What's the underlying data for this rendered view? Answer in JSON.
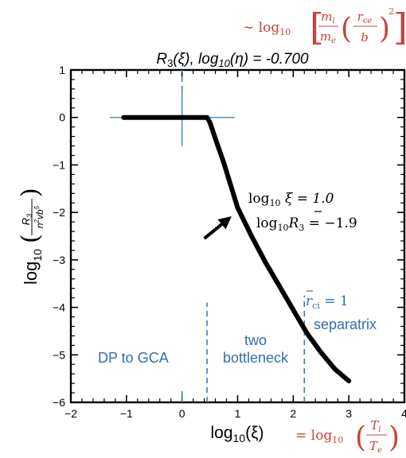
{
  "chart_data": {
    "type": "line",
    "title": "R",
    "title_sub": "3",
    "title_arg": "(ξ),  ",
    "title_log": "log",
    "title_log_sub": "10",
    "title_eta": "(η) = -0.700",
    "xlabel": "log",
    "xlabel_sub": "10",
    "xlabel_arg": "(ξ)",
    "ylabel_log": "log",
    "ylabel_sub": "10",
    "ylabel_num": "R",
    "ylabel_num_sub": "3",
    "ylabel_den": "n",
    "ylabel_den_sup1": "2",
    "ylabel_den_mid": "v",
    "ylabel_den_b": "b",
    "ylabel_den_sup2": "5",
    "xlim": [
      -2,
      4
    ],
    "ylim": [
      -6,
      1
    ],
    "xticks": [
      -2,
      -1,
      0,
      1,
      2,
      3,
      4
    ],
    "xtick_labels": [
      "−2",
      "−1",
      "0",
      "1",
      "2",
      "3",
      "4"
    ],
    "yticks": [
      1,
      0,
      -1,
      -2,
      -3,
      -4,
      -5,
      -6
    ],
    "ytick_labels": [
      "1",
      "0",
      "−1",
      "−2",
      "−3",
      "−4",
      "−5",
      "−6"
    ],
    "grid": false,
    "series": [
      {
        "color": "#000000",
        "x": [
          -1.05,
          0.0,
          0.35,
          0.45,
          0.5,
          0.6,
          0.75,
          1.0,
          1.25,
          1.5,
          1.75,
          2.0,
          2.25,
          2.5,
          2.75,
          3.0
        ],
        "y": [
          0.0,
          0.0,
          0.0,
          0.0,
          -0.1,
          -0.45,
          -0.95,
          -1.9,
          -2.5,
          -3.05,
          -3.55,
          -4.05,
          -4.55,
          -4.95,
          -5.3,
          -5.55
        ]
      }
    ],
    "crosshair": {
      "x": 0,
      "y": 0,
      "x_range": [
        -1.3,
        0.95
      ],
      "y_range": [
        -0.6,
        0.55
      ],
      "color": "#3a7ab4"
    },
    "vlines": [
      {
        "x": 0,
        "y_from": 0.55,
        "y_to": 1,
        "style": "dashed",
        "color": "#3a7ab4"
      },
      {
        "x": 0.45,
        "y_from": -6,
        "y_to": -3.9,
        "style": "dashed",
        "color": "#3a7ab4"
      },
      {
        "x": 2.2,
        "y_from": -6,
        "y_to": -3.75,
        "style": "dashed",
        "color": "#3a7ab4"
      }
    ],
    "marker_ticks": [
      {
        "x": 0,
        "y": -6
      }
    ],
    "arrow": {
      "from": [
        0.4,
        -2.55
      ],
      "to": [
        0.82,
        -2.15
      ]
    },
    "annotations": {
      "point_xi": {
        "prefix": "log",
        "sub": "10",
        "rest": " ξ = 1.0"
      },
      "point_r": {
        "prefix": "log",
        "sub": "10",
        "sym": "R",
        "sym_sub": "3",
        "rest": " = −1.9"
      },
      "r_ci": {
        "sym": "r",
        "sub": "ci",
        "rest": " = 1"
      },
      "region_dp_gca": "DP to GCA",
      "region_two_line1": "two",
      "region_two_line2": "bottleneck",
      "region_separatrix": "separatrix",
      "top_formula": {
        "tilde": "∼ log",
        "sub": "10",
        "mi": "m",
        "mi_sub": "i",
        "me": "m",
        "me_sub": "e",
        "rce": "r",
        "rce_sub": "ce",
        "b": "b",
        "sq": "2"
      },
      "bottom_formula": {
        "eq": "= log",
        "sub": "10",
        "ti": "T",
        "ti_sub": "i",
        "te": "T",
        "te_sub": "e"
      }
    },
    "colors": {
      "curve": "#000000",
      "guides": "#3a7ab4",
      "region_text": "#2e6fad",
      "formula": "#c6443a"
    }
  }
}
